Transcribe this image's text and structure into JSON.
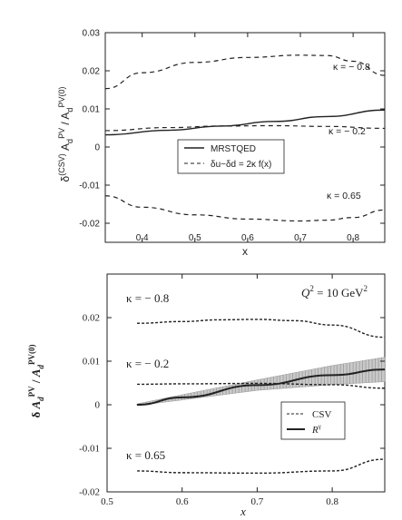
{
  "chart_data": [
    {
      "type": "line",
      "xlabel": "x",
      "ylabel": "δ(CSV) Ad PV / Ad PV(0)",
      "xlim": [
        0.33,
        0.86
      ],
      "ylim": [
        -0.025,
        0.03
      ],
      "xticks": [
        "0.4",
        "0.5",
        "0.6",
        "0.7",
        "0.8"
      ],
      "xtick_values": [
        0.4,
        0.5,
        0.6,
        0.7,
        0.8
      ],
      "yticks": [
        "0.03",
        "0.02",
        "0.01",
        "0",
        "-0.01",
        "-0.02"
      ],
      "ytick_values": [
        0.03,
        0.02,
        0.01,
        0,
        -0.01,
        -0.02
      ],
      "legend_position": "center",
      "legend": [
        {
          "label": "MRSTQED",
          "style": "solid"
        },
        {
          "label": "δu−δd = 2κ f(x)",
          "style": "dashed"
        }
      ],
      "annotations": [
        "κ = − 0.8",
        "κ = − 0.2",
        "κ = 0.65"
      ],
      "series": [
        {
          "name": "MRSTQED",
          "style": "solid",
          "x": [
            0.33,
            0.45,
            0.55,
            0.65,
            0.75,
            0.86
          ],
          "y": [
            0.0032,
            0.0044,
            0.0055,
            0.0067,
            0.008,
            0.0097
          ]
        },
        {
          "name": "κ = − 0.8",
          "style": "dashed",
          "x": [
            0.33,
            0.4,
            0.5,
            0.6,
            0.7,
            0.75,
            0.8,
            0.86
          ],
          "y": [
            0.0153,
            0.0195,
            0.0222,
            0.0235,
            0.0241,
            0.024,
            0.0225,
            0.0188
          ]
        },
        {
          "name": "κ = − 0.2",
          "style": "dashed",
          "x": [
            0.33,
            0.45,
            0.55,
            0.65,
            0.75,
            0.86
          ],
          "y": [
            0.0043,
            0.0051,
            0.0055,
            0.0056,
            0.0054,
            0.0049
          ]
        },
        {
          "name": "κ = 0.65",
          "style": "dashed",
          "x": [
            0.33,
            0.4,
            0.5,
            0.6,
            0.7,
            0.75,
            0.8,
            0.86
          ],
          "y": [
            -0.0128,
            -0.0158,
            -0.0178,
            -0.0189,
            -0.0194,
            -0.0192,
            -0.0185,
            -0.0165
          ]
        }
      ]
    },
    {
      "type": "line",
      "xlabel": "x",
      "ylabel": "δ A d PV / A d PV(0)",
      "xlim": [
        0.5,
        0.87
      ],
      "ylim": [
        -0.02,
        0.03
      ],
      "xticks": [
        "0.5",
        "0.6",
        "0.7",
        "0.8"
      ],
      "xtick_values": [
        0.5,
        0.6,
        0.7,
        0.8
      ],
      "yticks": [
        "0.02",
        "0.01",
        "0",
        "-0.01",
        "-0.02"
      ],
      "ytick_values": [
        0.02,
        0.01,
        0,
        -0.01,
        -0.02
      ],
      "legend_position": "lower-right",
      "legend": [
        {
          "label": "CSV",
          "style": "dashed"
        },
        {
          "label": "R",
          "superscript": "γ",
          "style": "solid"
        }
      ],
      "annotations": [
        "κ = − 0.8",
        "κ = − 0.2",
        "κ = 0.65",
        "Q",
        "2",
        " = 10 GeV",
        "2"
      ],
      "series": [
        {
          "name": "R",
          "style": "solid",
          "x": [
            0.54,
            0.6,
            0.7,
            0.8,
            0.87
          ],
          "y": [
            0.0,
            0.0017,
            0.0045,
            0.0068,
            0.0081
          ],
          "band": [
            0.0002,
            0.0006,
            0.0012,
            0.0022,
            0.0028
          ]
        },
        {
          "name": "κ = − 0.8",
          "style": "dashed",
          "x": [
            0.54,
            0.6,
            0.65,
            0.7,
            0.75,
            0.8,
            0.87
          ],
          "y": [
            0.0187,
            0.0191,
            0.0195,
            0.0196,
            0.0193,
            0.0183,
            0.0155
          ]
        },
        {
          "name": "κ = − 0.2",
          "style": "dashed",
          "x": [
            0.54,
            0.6,
            0.7,
            0.8,
            0.87
          ],
          "y": [
            0.0047,
            0.0048,
            0.0049,
            0.0046,
            0.0038
          ]
        },
        {
          "name": "κ = 0.65",
          "style": "dashed",
          "x": [
            0.54,
            0.6,
            0.7,
            0.8,
            0.87
          ],
          "y": [
            -0.0152,
            -0.0156,
            -0.0157,
            -0.0152,
            -0.0125
          ]
        }
      ]
    }
  ]
}
